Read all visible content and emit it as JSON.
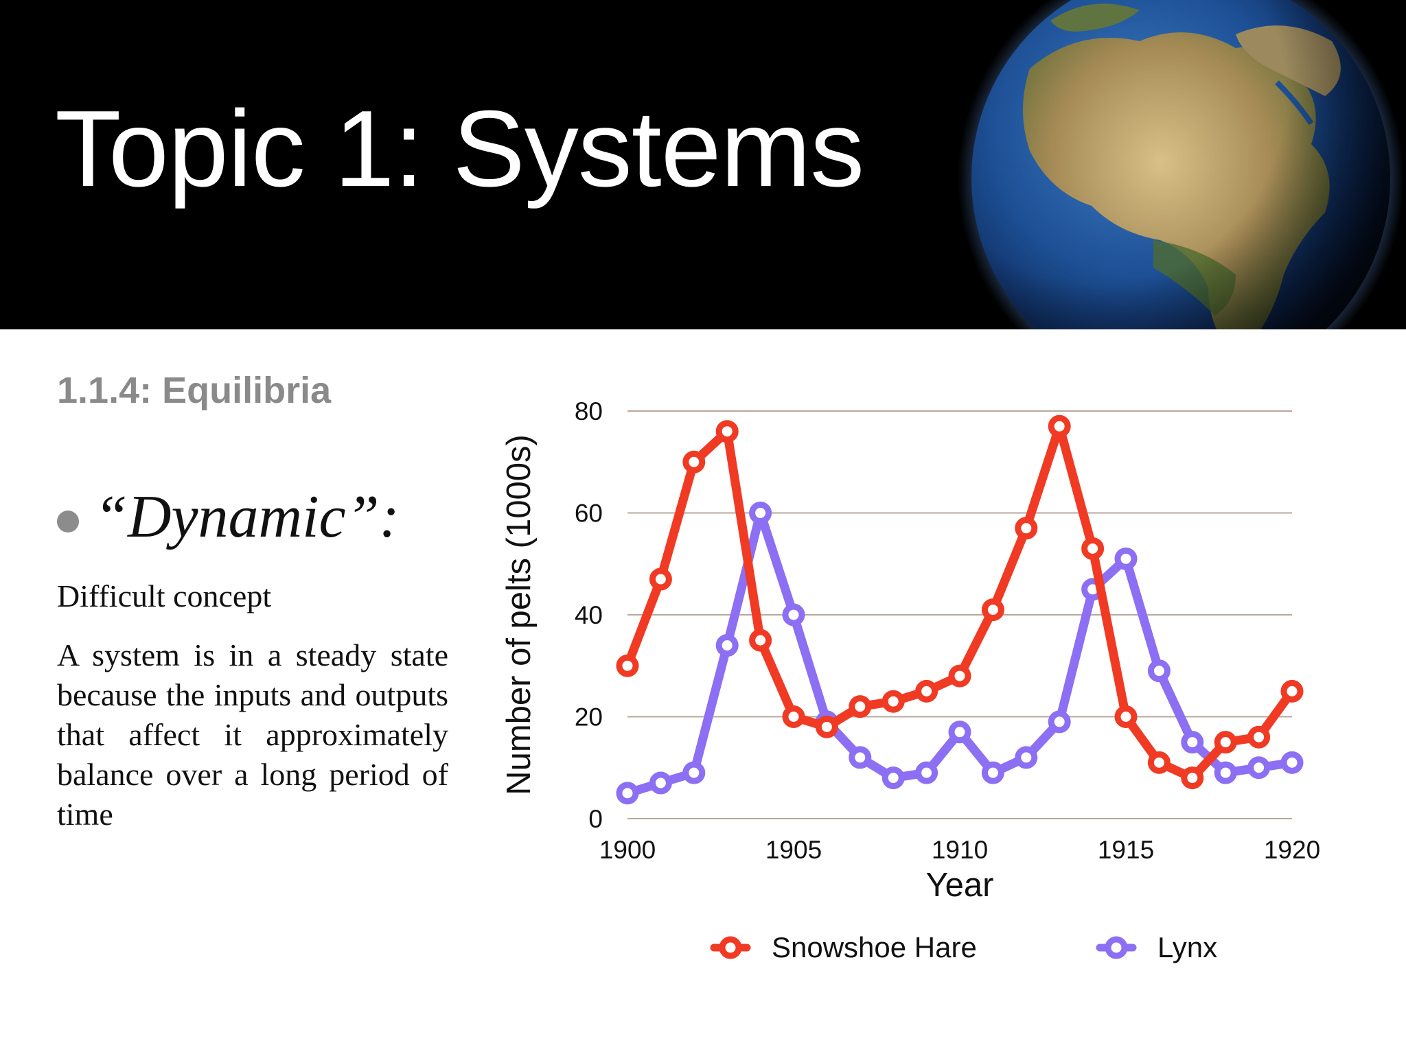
{
  "slide": {
    "title": "Topic 1: Systems",
    "subtitle": "1.1.4: Equilibria",
    "bullet": "“Dynamic”:",
    "line1": "Difficult concept",
    "paragraph": "A system is in a steady state because the inputs and outputs that affect it approximately balance over a long period of time"
  },
  "colors": {
    "header_bg": "#000000",
    "hare": "#f03a24",
    "lynx": "#8c6ff2",
    "gridline": "#b8a89c"
  },
  "chart_data": {
    "type": "line",
    "xlabel": "Year",
    "ylabel": "Number of pelts (1000s)",
    "xlim": [
      1900,
      1920
    ],
    "ylim": [
      0,
      80
    ],
    "x_ticks": [
      1900,
      1905,
      1910,
      1915,
      1920
    ],
    "y_ticks": [
      0,
      20,
      40,
      60,
      80
    ],
    "grid": "horizontal",
    "legend_position": "bottom",
    "x": [
      1900,
      1901,
      1902,
      1903,
      1904,
      1905,
      1906,
      1907,
      1908,
      1909,
      1910,
      1911,
      1912,
      1913,
      1914,
      1915,
      1916,
      1917,
      1918,
      1919,
      1920
    ],
    "series": [
      {
        "name": "Snowshoe Hare",
        "color": "#f03a24",
        "values": [
          30,
          47,
          70,
          76,
          35,
          20,
          18,
          22,
          23,
          25,
          28,
          41,
          57,
          77,
          53,
          20,
          11,
          8,
          15,
          16,
          25
        ]
      },
      {
        "name": "Lynx",
        "color": "#8c6ff2",
        "values": [
          5,
          7,
          9,
          34,
          60,
          40,
          19,
          12,
          8,
          9,
          17,
          9,
          12,
          19,
          45,
          51,
          29,
          15,
          9,
          10,
          11
        ]
      }
    ]
  }
}
